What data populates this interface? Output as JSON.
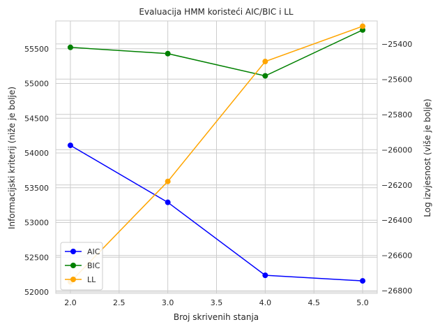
{
  "chart_data": {
    "type": "line",
    "title": "Evaluacija HMM koristeći AIC/BIC i LL",
    "xlabel": "Broj skrivenih stanja",
    "ylabel_left": "Informacijski kriterij (niže je bolje)",
    "ylabel_right": "Log izvjesnost (više je bolje)",
    "x": [
      2.0,
      3.0,
      4.0,
      5.0
    ],
    "x_ticks": [
      "2.0",
      "2.5",
      "3.0",
      "3.5",
      "4.0",
      "4.5",
      "5.0"
    ],
    "xlim": [
      1.85,
      5.15
    ],
    "y_left_ticks": [
      "52000",
      "52500",
      "53000",
      "53500",
      "54000",
      "54500",
      "55000",
      "55500"
    ],
    "ylim_left": [
      51980,
      55900
    ],
    "y_right_ticks": [
      "−26800",
      "−26600",
      "−26400",
      "−26200",
      "−26000",
      "−25800",
      "−25600",
      "−25400"
    ],
    "ylim_right": [
      -26815,
      -25270
    ],
    "grid": true,
    "legend_position": "lower-left",
    "series": [
      {
        "name": "AIC",
        "axis": "left",
        "color": "#0000ff",
        "values": [
          54110,
          53290,
          52240,
          52160
        ]
      },
      {
        "name": "BIC",
        "axis": "left",
        "color": "#008000",
        "values": [
          55520,
          55430,
          55110,
          55770
        ]
      },
      {
        "name": "LL",
        "axis": "right",
        "color": "#ffa500",
        "values": [
          -26750,
          -26180,
          -25500,
          -25300
        ]
      }
    ]
  }
}
